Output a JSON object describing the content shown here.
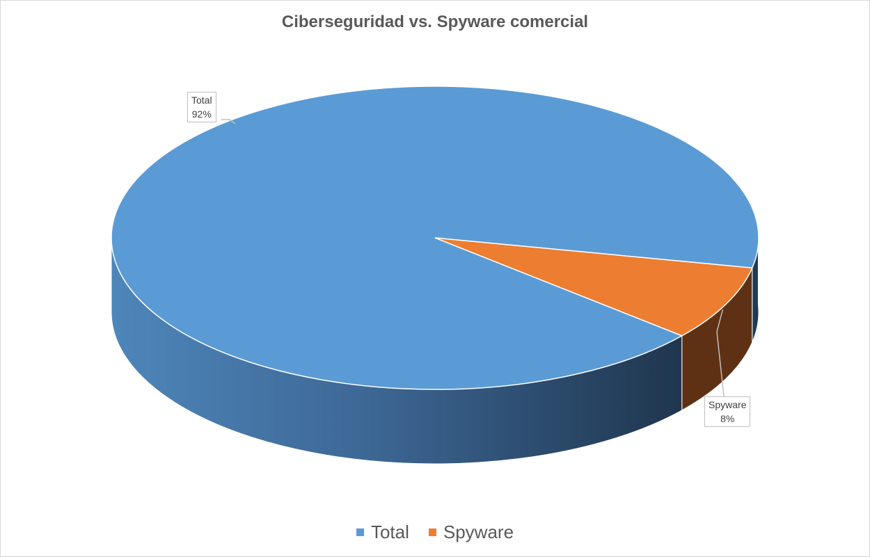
{
  "chart_data": {
    "type": "pie",
    "title": "Ciberseguridad vs. Spyware comercial",
    "slices": [
      {
        "name": "Total",
        "percent": 92,
        "label": "92%",
        "color": "#5B9BD5",
        "side_color": "#44739E"
      },
      {
        "name": "Spyware",
        "percent": 8,
        "label": "8%",
        "color": "#ED7D31",
        "side_color": "#5F3114"
      }
    ],
    "legend_position": "bottom",
    "data_labels": "callout with category name and percentage",
    "style": "3d pie"
  }
}
